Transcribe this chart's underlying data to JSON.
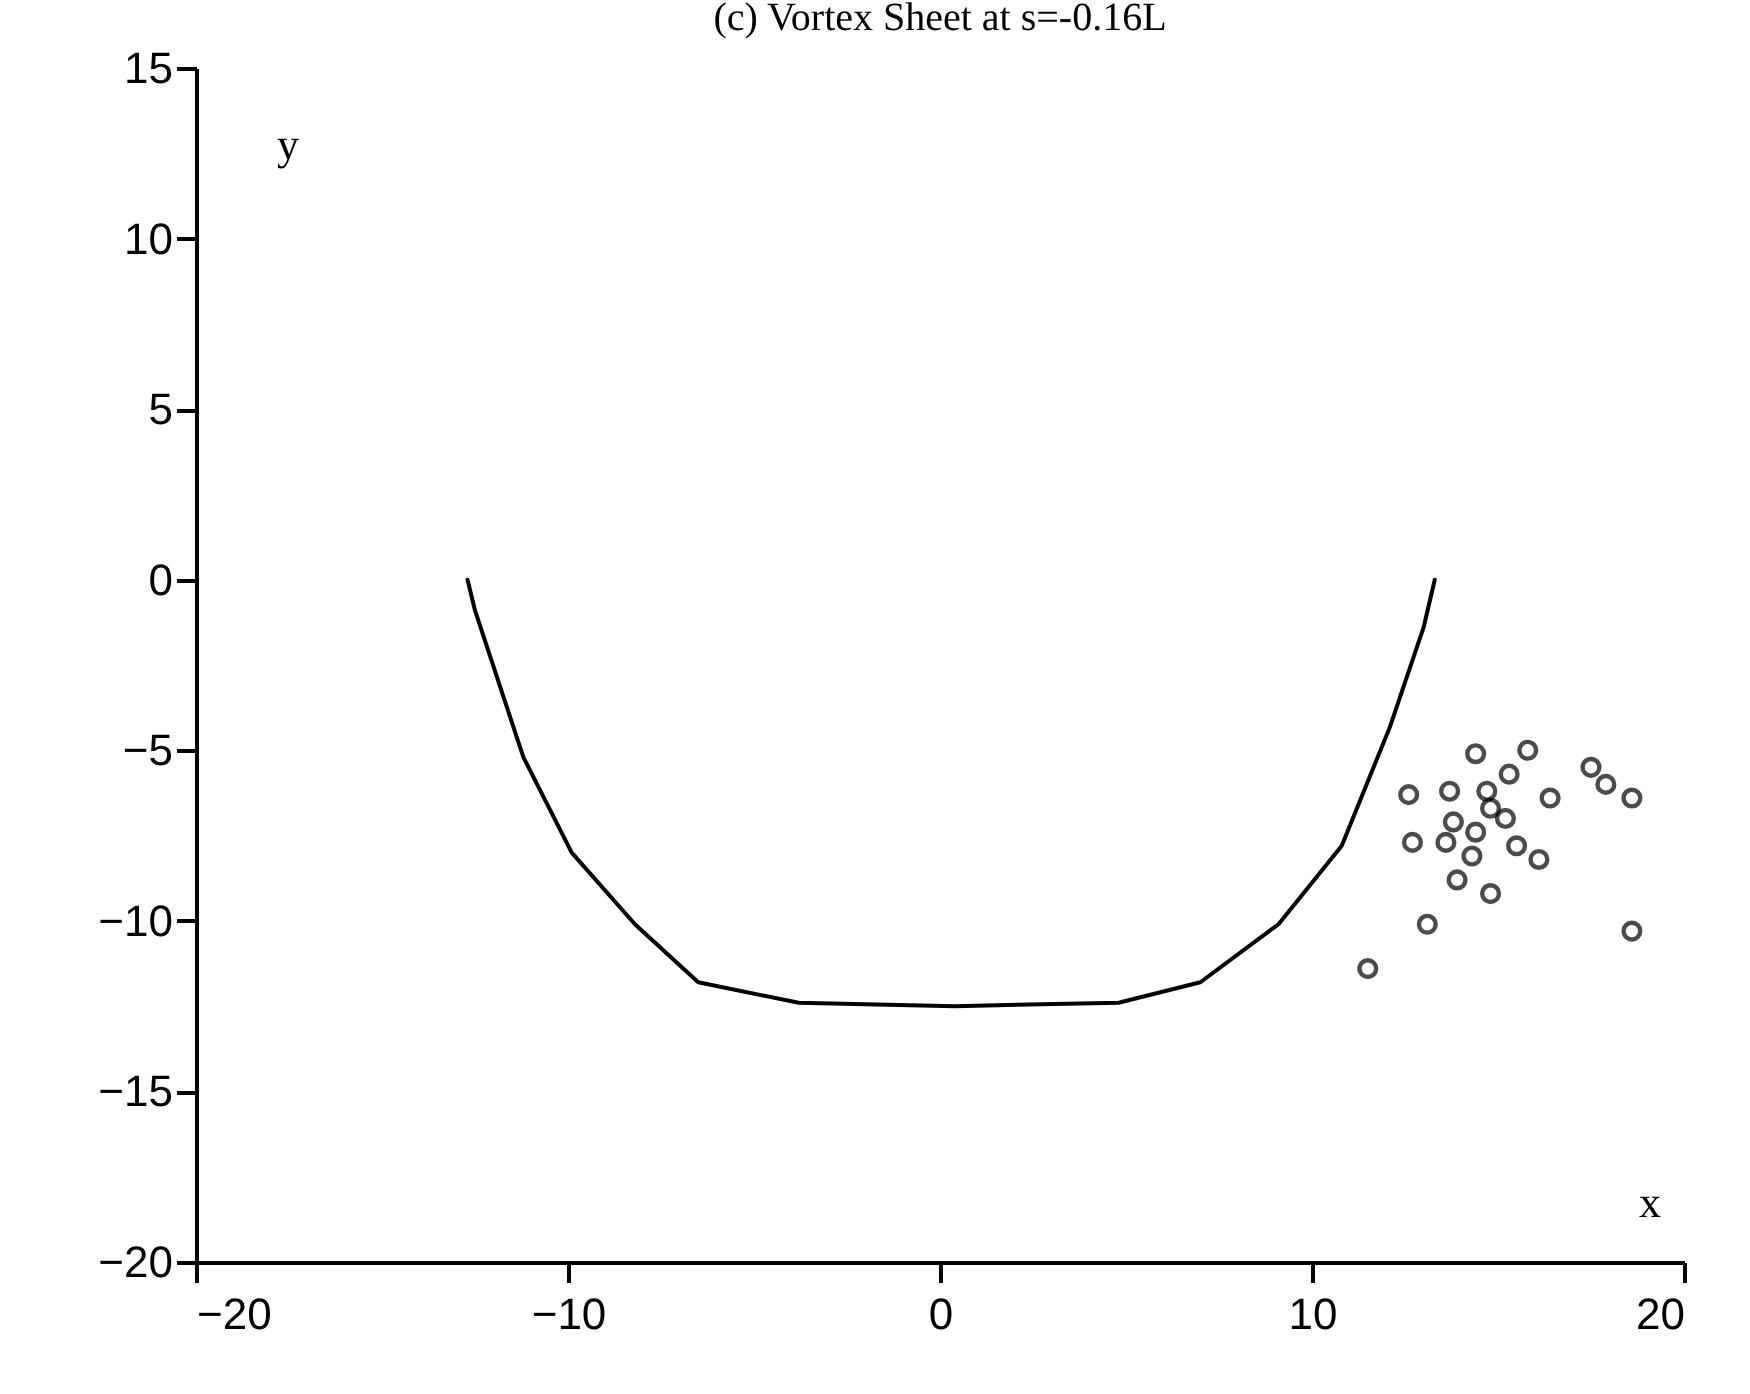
{
  "chart_data": {
    "type": "scatter",
    "title": "(c)    Vortex Sheet at s=-0.16L",
    "xlabel": "x",
    "ylabel": "y",
    "xlim": [
      -20,
      20
    ],
    "xticks": [
      -20,
      -10,
      0,
      10,
      20
    ],
    "ylim": [
      -20,
      15
    ],
    "yticks": [
      -20,
      -15,
      -10,
      -5,
      0,
      5,
      10,
      15
    ],
    "series": [
      {
        "type": "line",
        "color": "#000000",
        "x": [
          -12.7,
          -12.5,
          -11.2,
          -9.9,
          -8.2,
          -6.5,
          -3.8,
          0.4,
          4.8,
          7.0,
          9.1,
          10.8,
          12.1,
          13.0,
          13.3
        ],
        "values": [
          0,
          -0.9,
          -5.2,
          -8.0,
          -10.1,
          -11.8,
          -12.4,
          -12.5,
          -12.4,
          -11.8,
          -10.1,
          -7.8,
          -4.3,
          -1.4,
          0
        ]
      },
      {
        "marker": "circle",
        "color": "#000000",
        "x": [
          14.4,
          15.8,
          15.3,
          17.5,
          17.9,
          18.6,
          12.6,
          13.7,
          14.7,
          16.4,
          14.8,
          15.2,
          13.8,
          14.4,
          12.7,
          13.6,
          15.5,
          14.3,
          16.1,
          13.9,
          14.8,
          13.1,
          18.6,
          11.5
        ],
        "values": [
          -5.1,
          -5.0,
          -5.7,
          -5.5,
          -6.0,
          -6.4,
          -6.3,
          -6.2,
          -6.2,
          -6.4,
          -6.7,
          -7.0,
          -7.1,
          -7.4,
          -7.7,
          -7.7,
          -7.8,
          -8.1,
          -8.2,
          -8.8,
          -9.2,
          -10.1,
          -10.3,
          -11.4
        ]
      }
    ]
  }
}
